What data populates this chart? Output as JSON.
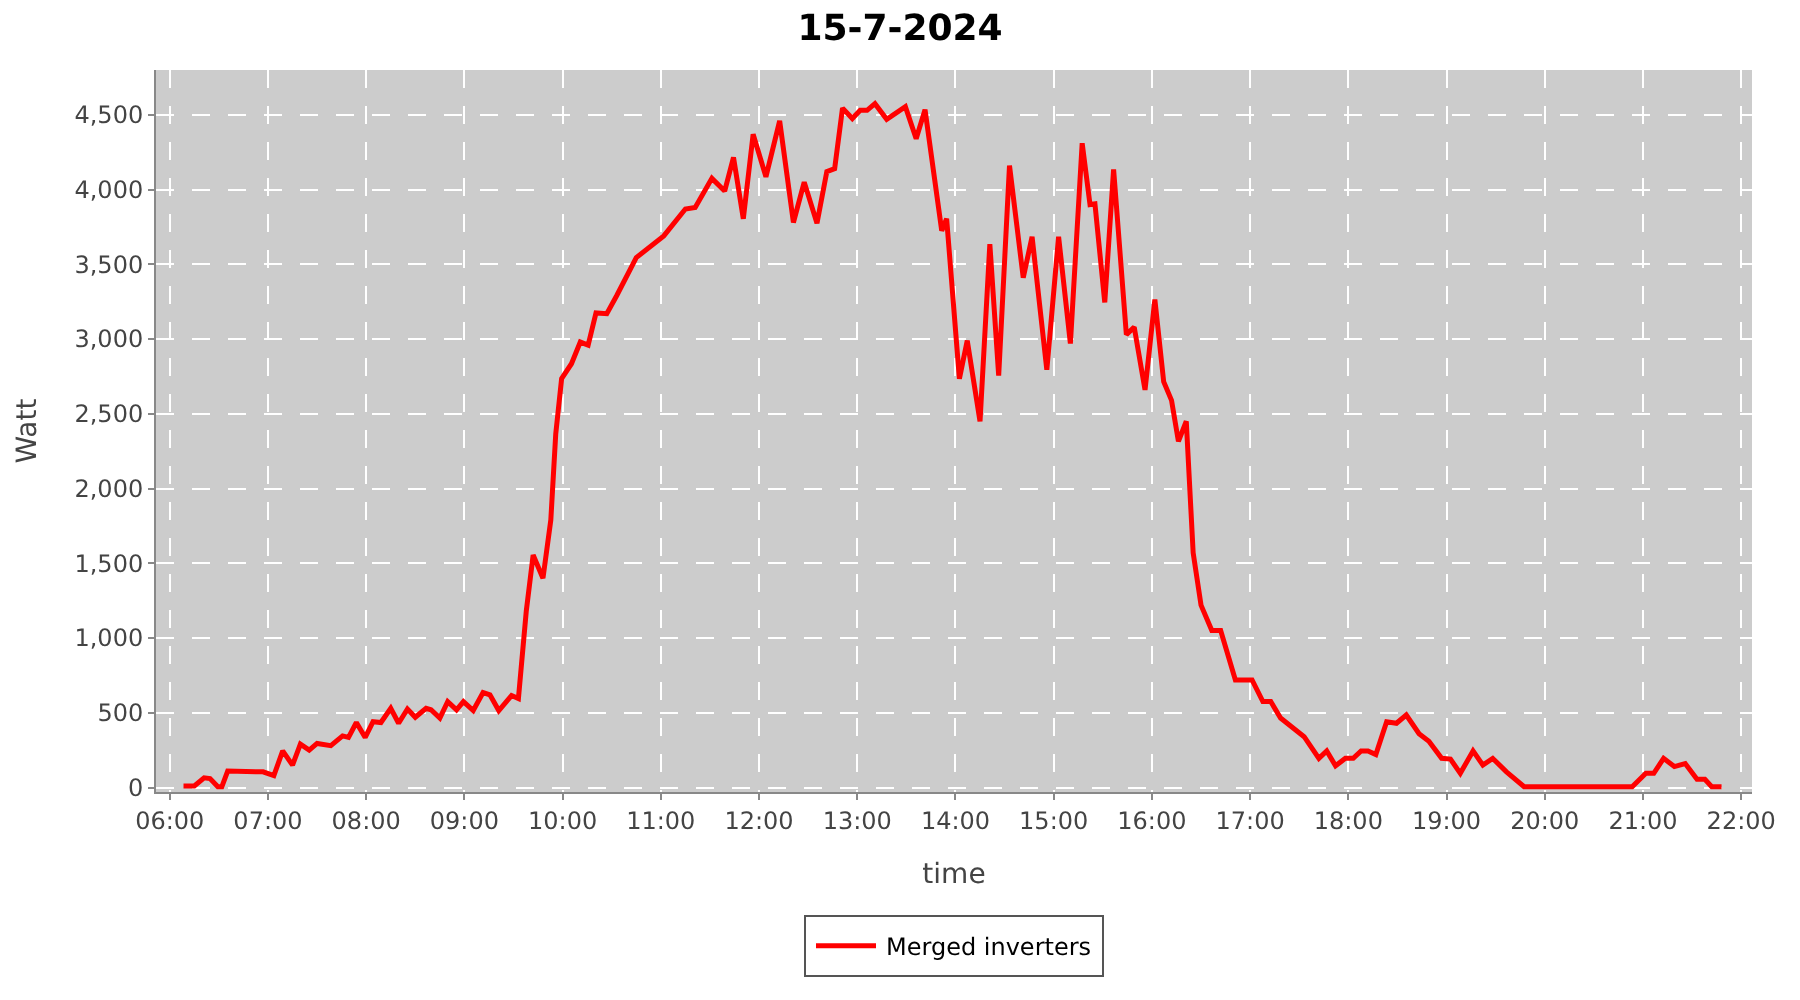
{
  "chart_data": {
    "type": "line",
    "title": "15-7-2024",
    "xlabel": "time",
    "ylabel": "Watt",
    "xlim": [
      5.86,
      22.11
    ],
    "ylim": [
      -30,
      4800
    ],
    "xticks": [
      {
        "value": 6,
        "label": "06:00"
      },
      {
        "value": 7,
        "label": "07:00"
      },
      {
        "value": 8,
        "label": "08:00"
      },
      {
        "value": 9,
        "label": "09:00"
      },
      {
        "value": 10,
        "label": "10:00"
      },
      {
        "value": 11,
        "label": "11:00"
      },
      {
        "value": 12,
        "label": "12:00"
      },
      {
        "value": 13,
        "label": "13:00"
      },
      {
        "value": 14,
        "label": "14:00"
      },
      {
        "value": 15,
        "label": "15:00"
      },
      {
        "value": 16,
        "label": "16:00"
      },
      {
        "value": 17,
        "label": "17:00"
      },
      {
        "value": 18,
        "label": "18:00"
      },
      {
        "value": 19,
        "label": "19:00"
      },
      {
        "value": 20,
        "label": "20:00"
      },
      {
        "value": 21,
        "label": "21:00"
      },
      {
        "value": 22,
        "label": "22:00"
      }
    ],
    "yticks": [
      0,
      500,
      {
        "value": 1000,
        "label": "1,000"
      },
      {
        "value": 1500,
        "label": "1,500"
      },
      {
        "value": 2000,
        "label": "2,000"
      },
      {
        "value": 2500,
        "label": "2,500"
      },
      {
        "value": 3000,
        "label": "3,000"
      },
      {
        "value": 3500,
        "label": "3,500"
      },
      {
        "value": 4000,
        "label": "4,000"
      },
      {
        "value": 4500,
        "label": "4,500"
      }
    ],
    "grid": true,
    "legend": "bottom",
    "marker": "none",
    "line_style": "solid",
    "series": [
      {
        "name": "Merged inverters",
        "color": "#ff0000",
        "x": [
          6.14,
          6.25,
          6.35,
          6.41,
          6.49,
          6.53,
          6.59,
          6.95,
          7.06,
          7.15,
          7.25,
          7.33,
          7.42,
          7.5,
          7.64,
          7.76,
          7.82,
          7.9,
          7.99,
          8.07,
          8.15,
          8.25,
          8.33,
          8.42,
          8.5,
          8.61,
          8.66,
          8.75,
          8.83,
          8.92,
          8.99,
          9.09,
          9.19,
          9.26,
          9.35,
          9.48,
          9.55,
          9.63,
          9.7,
          9.8,
          9.88,
          9.93,
          9.99,
          10.09,
          10.18,
          10.26,
          10.34,
          10.45,
          10.55,
          10.75,
          11.03,
          11.25,
          11.35,
          11.52,
          11.65,
          11.74,
          11.84,
          11.94,
          12.07,
          12.21,
          12.35,
          12.46,
          12.59,
          12.69,
          12.77,
          12.85,
          12.95,
          13.03,
          13.1,
          13.18,
          13.3,
          13.49,
          13.6,
          13.69,
          13.86,
          13.91,
          14.04,
          14.12,
          14.25,
          14.35,
          14.44,
          14.55,
          14.69,
          14.78,
          14.93,
          15.05,
          15.17,
          15.29,
          15.37,
          15.42,
          15.52,
          15.61,
          15.74,
          15.82,
          15.93,
          16.03,
          16.12,
          16.2,
          16.27,
          16.35,
          16.42,
          16.5,
          16.61,
          16.7,
          16.85,
          17.02,
          17.13,
          17.21,
          17.31,
          17.55,
          17.7,
          17.78,
          17.87,
          17.97,
          18.05,
          18.13,
          18.2,
          18.28,
          18.39,
          18.49,
          18.59,
          18.72,
          18.82,
          18.95,
          19.04,
          19.14,
          19.27,
          19.37,
          19.47,
          19.61,
          19.79,
          20.89,
          21.03,
          21.11,
          21.21,
          21.32,
          21.43,
          21.55,
          21.63,
          21.7,
          21.8
        ],
        "values": [
          10,
          10,
          65,
          60,
          5,
          5,
          110,
          105,
          80,
          245,
          150,
          290,
          250,
          295,
          280,
          345,
          335,
          435,
          335,
          440,
          435,
          530,
          430,
          525,
          470,
          530,
          520,
          465,
          575,
          520,
          575,
          515,
          635,
          620,
          515,
          615,
          595,
          1180,
          1555,
          1400,
          1790,
          2365,
          2735,
          2835,
          2980,
          2960,
          3175,
          3170,
          3290,
          3545,
          3690,
          3870,
          3880,
          4075,
          3990,
          4215,
          3805,
          4370,
          4085,
          4460,
          3780,
          4050,
          3775,
          4120,
          4140,
          4545,
          4475,
          4530,
          4530,
          4575,
          4470,
          4555,
          4340,
          4535,
          3725,
          3805,
          2735,
          2990,
          2450,
          3635,
          2755,
          4160,
          3410,
          3685,
          2795,
          3685,
          2970,
          4310,
          3900,
          3905,
          3245,
          4135,
          3030,
          3080,
          2660,
          3265,
          2715,
          2590,
          2315,
          2450,
          1570,
          1220,
          1050,
          1050,
          720,
          720,
          575,
          575,
          465,
          340,
          195,
          245,
          145,
          195,
          195,
          245,
          245,
          220,
          440,
          430,
          485,
          360,
          310,
          195,
          190,
          95,
          245,
          150,
          195,
          105,
          5,
          5,
          95,
          95,
          195,
          140,
          160,
          55,
          55,
          5,
          5
        ]
      }
    ]
  }
}
